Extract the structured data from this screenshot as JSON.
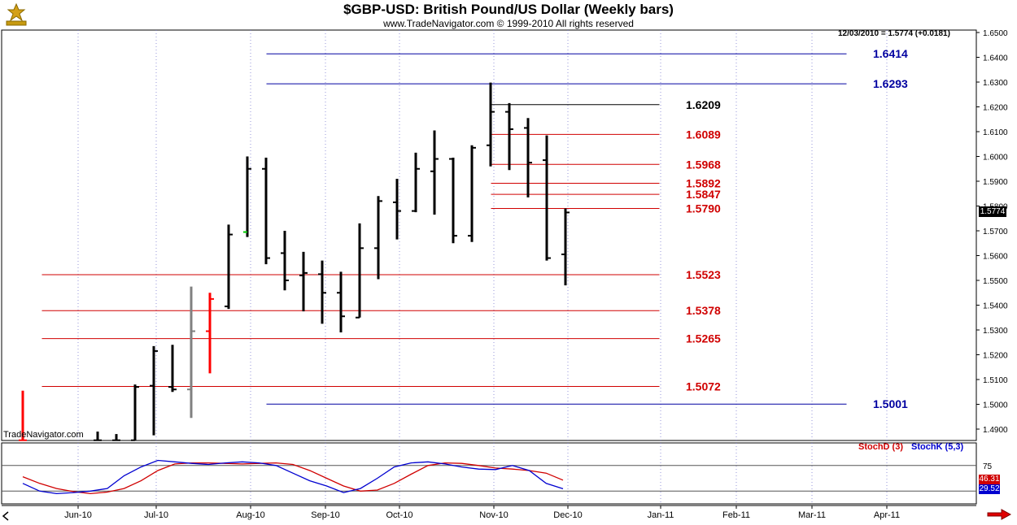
{
  "header": {
    "title": "$GBP-USD:  British Pound/US Dollar  (Weekly bars)",
    "subtitle": "www.TradeNavigator.com © 1999-2010 All rights reserved",
    "last_quote": "12/03/2010 = 1.5774 (+0.0181)",
    "watermark": "TradeNavigator.com",
    "logo_icon": "trade-navigator-logo-icon"
  },
  "colors": {
    "bars": "#000000",
    "down_bar": "#ff0000",
    "neutral_bar": "#808080",
    "up_tick": "#00cc00",
    "red_level": "#d00000",
    "blue_level": "#0000a0",
    "black_level": "#000000",
    "stoch_d": "#d00000",
    "stoch_k": "#0000d0"
  },
  "chart_data": [
    {
      "type": "ohlc",
      "title": "$GBP-USD:  British Pound/US Dollar  (Weekly bars)",
      "x_labels": [
        "Jun-10",
        "Jul-10",
        "Aug-10",
        "Sep-10",
        "Oct-10",
        "Nov-10",
        "Dec-10",
        "Jan-11",
        "Feb-11",
        "Mar-11",
        "Apr-11"
      ],
      "y_ticks": [
        "1.6500",
        "1.6400",
        "1.6300",
        "1.6200",
        "1.6100",
        "1.6000",
        "1.5900",
        "1.5800",
        "1.5700",
        "1.5600",
        "1.5500",
        "1.5400",
        "1.5300",
        "1.5200",
        "1.5100",
        "1.5000",
        "1.4900"
      ],
      "ylim": [
        1.4855,
        1.653
      ],
      "last_price": "1.5774",
      "bars": [
        {
          "week": 0,
          "high": 1.5055,
          "low": 1.4855,
          "open": 1.4855,
          "close": 1.4855,
          "color": "down"
        },
        {
          "week": 4,
          "high": 1.489,
          "low": 1.4855,
          "open": 1.4855,
          "close": 1.4855
        },
        {
          "week": 5,
          "high": 1.488,
          "low": 1.4855,
          "open": 1.4855,
          "close": 1.4855
        },
        {
          "week": 6,
          "high": 1.508,
          "low": 1.4855,
          "open": 1.4855,
          "close": 1.507
        },
        {
          "week": 7,
          "high": 1.5235,
          "low": 1.4875,
          "open": 1.5075,
          "close": 1.5215
        },
        {
          "week": 8,
          "high": 1.524,
          "low": 1.505,
          "open": 1.507,
          "close": 1.506
        },
        {
          "week": 9,
          "high": 1.5475,
          "low": 1.4945,
          "open": 1.506,
          "close": 1.5295,
          "color": "neutral"
        },
        {
          "week": 10,
          "high": 1.545,
          "low": 1.5125,
          "open": 1.5295,
          "close": 1.5425,
          "color": "down"
        },
        {
          "week": 11,
          "high": 1.5725,
          "low": 1.5385,
          "open": 1.5395,
          "close": 1.5685
        },
        {
          "week": 12,
          "high": 1.6,
          "low": 1.5675,
          "open": 1.5695,
          "close": 1.595,
          "open_color": "up"
        },
        {
          "week": 13,
          "high": 1.5995,
          "low": 1.5565,
          "open": 1.595,
          "close": 1.559
        },
        {
          "week": 14,
          "high": 1.57,
          "low": 1.546,
          "open": 1.561,
          "close": 1.55
        },
        {
          "week": 15,
          "high": 1.5615,
          "low": 1.5375,
          "open": 1.552,
          "close": 1.553
        },
        {
          "week": 16,
          "high": 1.558,
          "low": 1.5325,
          "open": 1.5525,
          "close": 1.545
        },
        {
          "week": 17,
          "high": 1.5535,
          "low": 1.529,
          "open": 1.545,
          "close": 1.5355
        },
        {
          "week": 18,
          "high": 1.573,
          "low": 1.535,
          "open": 1.535,
          "close": 1.563
        },
        {
          "week": 19,
          "high": 1.584,
          "low": 1.5505,
          "open": 1.563,
          "close": 1.582
        },
        {
          "week": 20,
          "high": 1.591,
          "low": 1.5665,
          "open": 1.5815,
          "close": 1.578
        },
        {
          "week": 21,
          "high": 1.6015,
          "low": 1.5775,
          "open": 1.578,
          "close": 1.595
        },
        {
          "week": 22,
          "high": 1.6105,
          "low": 1.5765,
          "open": 1.594,
          "close": 1.599
        },
        {
          "week": 23,
          "high": 1.5995,
          "low": 1.565,
          "open": 1.599,
          "close": 1.568
        },
        {
          "week": 24,
          "high": 1.6045,
          "low": 1.5655,
          "open": 1.568,
          "close": 1.6035
        },
        {
          "week": 25,
          "high": 1.6298,
          "low": 1.596,
          "open": 1.6045,
          "close": 1.618
        },
        {
          "week": 26,
          "high": 1.6215,
          "low": 1.5945,
          "open": 1.618,
          "close": 1.611
        },
        {
          "week": 27,
          "high": 1.6155,
          "low": 1.5835,
          "open": 1.6115,
          "close": 1.5975
        },
        {
          "week": 28,
          "high": 1.6085,
          "low": 1.558,
          "open": 1.5985,
          "close": 1.559
        },
        {
          "week": 29,
          "high": 1.579,
          "low": 1.548,
          "open": 1.5605,
          "close": 1.5774
        }
      ],
      "levels": [
        {
          "value": 1.6414,
          "label": "1.6414",
          "color": "blue",
          "from_week": 13,
          "to_week": 44,
          "label_week": 45
        },
        {
          "value": 1.6293,
          "label": "1.6293",
          "color": "blue",
          "from_week": 13,
          "to_week": 44,
          "label_week": 45
        },
        {
          "value": 1.6209,
          "label": "1.6209",
          "color": "black",
          "from_week": 25,
          "to_week": 34,
          "label_week": 35
        },
        {
          "value": 1.6089,
          "label": "1.6089",
          "color": "red",
          "from_week": 25,
          "to_week": 34,
          "label_week": 35
        },
        {
          "value": 1.5968,
          "label": "1.5968",
          "color": "red",
          "from_week": 25,
          "to_week": 34,
          "label_week": 35
        },
        {
          "value": 1.5892,
          "label": "1.5892",
          "color": "red",
          "from_week": 25,
          "to_week": 34,
          "label_week": 35
        },
        {
          "value": 1.5847,
          "label": "1.5847",
          "color": "red",
          "from_week": 25,
          "to_week": 34,
          "label_week": 35
        },
        {
          "value": 1.579,
          "label": "1.5790",
          "color": "red",
          "from_week": 25,
          "to_week": 34,
          "label_week": 35
        },
        {
          "value": 1.5523,
          "label": "1.5523",
          "color": "red",
          "from_week": 1,
          "to_week": 34,
          "label_week": 35
        },
        {
          "value": 1.5378,
          "label": "1.5378",
          "color": "red",
          "from_week": 1,
          "to_week": 34,
          "label_week": 35
        },
        {
          "value": 1.5265,
          "label": "1.5265",
          "color": "red",
          "from_week": 1,
          "to_week": 34,
          "label_week": 35
        },
        {
          "value": 1.5072,
          "label": "1.5072",
          "color": "red",
          "from_week": 1,
          "to_week": 34,
          "label_week": 35
        },
        {
          "value": 1.5001,
          "label": "1.5001",
          "color": "blue",
          "from_week": 13,
          "to_week": 44,
          "label_week": 45
        }
      ]
    },
    {
      "type": "line",
      "title": "",
      "ylim": [
        0,
        100
      ],
      "y_ticks": [
        "75"
      ],
      "reference_lines": [
        75,
        25
      ],
      "series": [
        {
          "name": "StochD (3)",
          "values": [
            53,
            40,
            30,
            24,
            20,
            23,
            30,
            45,
            65,
            78,
            80,
            80,
            79,
            78,
            79,
            80,
            77,
            65,
            50,
            35,
            25,
            27,
            40,
            58,
            75,
            80,
            79,
            75,
            70,
            68,
            65,
            60,
            46.31
          ],
          "last_label": "46.31"
        },
        {
          "name": "StochK (5,3)",
          "values": [
            40,
            25,
            20,
            22,
            25,
            30,
            55,
            72,
            85,
            82,
            79,
            77,
            80,
            82,
            80,
            75,
            60,
            45,
            35,
            22,
            30,
            50,
            72,
            80,
            82,
            78,
            72,
            68,
            67,
            75,
            65,
            40,
            29.52
          ],
          "last_label": "29.52"
        }
      ]
    }
  ],
  "nav": {
    "left_arrow_icon": "scroll-left-icon",
    "right_arrow_icon": "scroll-right-icon"
  }
}
